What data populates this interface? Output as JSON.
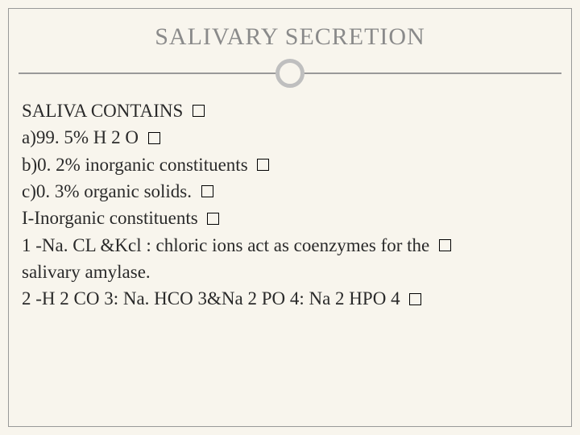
{
  "colors": {
    "slide_bg": "#f8f5ed",
    "border": "#999999",
    "title_color": "#8a8a8a",
    "body_color": "#2a2a2a",
    "circle_border": "#bfbfbf"
  },
  "typography": {
    "title_fontsize": 30,
    "body_fontsize": 23,
    "font_family": "Georgia, Times New Roman, serif"
  },
  "title": "SALIVARY SECRETION",
  "lines": [
    {
      "text": " SALIVA CONTAINS ",
      "marker": true
    },
    {
      "text": " a)99. 5% H 2 O ",
      "marker": true
    },
    {
      "text": " b)0. 2%  inorganic constituents ",
      "marker": true
    },
    {
      "text": "c)0. 3% organic solids. ",
      "marker": true
    },
    {
      "text": " I-Inorganic constituents ",
      "marker": true
    },
    {
      "text": "1 -Na. CL &Kcl : chloric ions act as coenzymes for the  ",
      "marker": true,
      "cont": "salivary amylase."
    },
    {
      "text": " 2 -H 2 CO 3: Na. HCO 3&Na 2 PO 4: Na 2 HPO 4 ",
      "marker": true
    }
  ]
}
